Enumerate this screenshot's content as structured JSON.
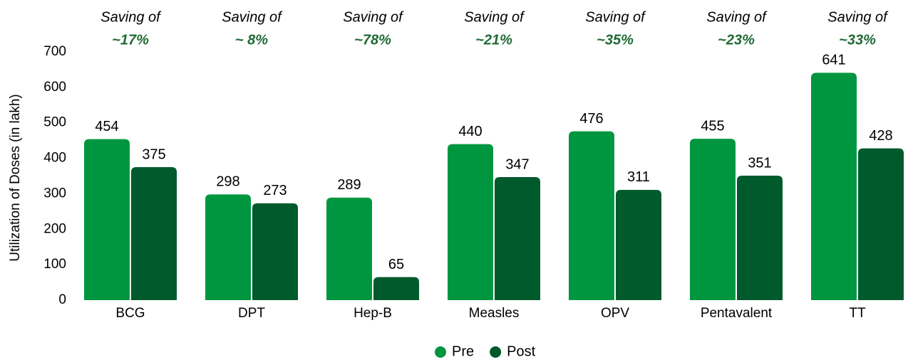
{
  "chart_data": {
    "type": "bar",
    "y_label": "Utilization of Doses (in lakh)",
    "categories": [
      "BCG",
      "DPT",
      "Hep-B",
      "Measles",
      "OPV",
      "Pentavalent",
      "TT"
    ],
    "series": [
      {
        "name": "Pre",
        "color": "#00963f",
        "values": [
          454,
          298,
          289,
          440,
          476,
          455,
          641
        ]
      },
      {
        "name": "Post",
        "color": "#005a2b",
        "values": [
          375,
          273,
          65,
          347,
          311,
          351,
          428
        ]
      }
    ],
    "annotations": [
      {
        "text": "Saving of",
        "saving": "~17%"
      },
      {
        "text": "Saving of",
        "saving": "~ 8%"
      },
      {
        "text": "Saving of",
        "saving": "~78%"
      },
      {
        "text": "Saving of",
        "saving": "~21%"
      },
      {
        "text": "Saving of",
        "saving": "~35%"
      },
      {
        "text": "Saving of",
        "saving": "~23%"
      },
      {
        "text": "Saving of",
        "saving": "~33%"
      }
    ],
    "ylim": [
      0,
      700
    ],
    "yticks": [
      0,
      100,
      200,
      300,
      400,
      500,
      600,
      700
    ],
    "grid": false,
    "legend": "bottom"
  }
}
